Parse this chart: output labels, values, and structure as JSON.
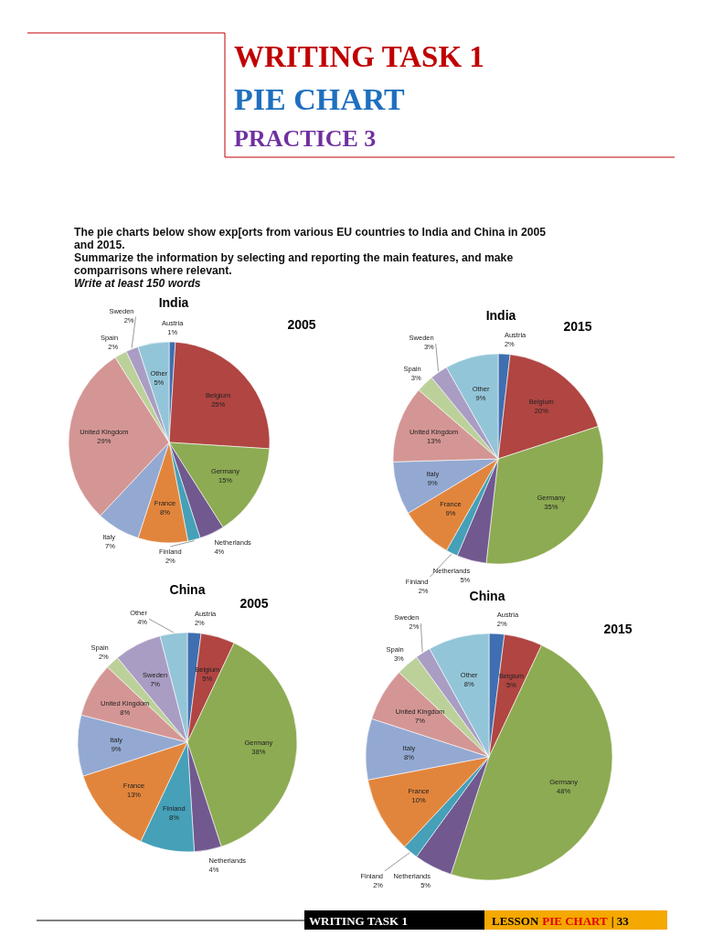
{
  "chart_data": [
    {
      "type": "other",
      "title": "WRITING TASK 1",
      "subtitle": "PIE CHART",
      "annotations": [
        "PRACTICE 3",
        "The pie charts below show exp[orts from various EU countries to India and China in 2005",
        "and 2015.",
        "Summarize the information by selecting and reporting the main features, and make",
        "comparrisons where relevant.",
        "Write at least 150 words"
      ]
    },
    {
      "type": "pie",
      "title": "India",
      "subtitle": "2005",
      "categories": [
        "Austria",
        "Belgium",
        "Germany",
        "Netherlands",
        "Finland",
        "France",
        "Italy",
        "United Kingdom",
        "Spain",
        "Sweden",
        "Other"
      ],
      "values": [
        1,
        25,
        15,
        4,
        2,
        8,
        7,
        29,
        2,
        2,
        5
      ],
      "value_labels": [
        "1%",
        "25%",
        "15%",
        "4%",
        "2%",
        "8%",
        "7%",
        "29%",
        "2%",
        "2%",
        "5%"
      ],
      "colors": [
        "#3f6fb0",
        "#b04542",
        "#8dab52",
        "#71588f",
        "#45a0b8",
        "#e2853c",
        "#93a9d2",
        "#d49694",
        "#bcd19a",
        "#aa9dc4",
        "#93c5d8"
      ]
    },
    {
      "type": "pie",
      "title": "India",
      "subtitle": "2015",
      "categories": [
        "Austria",
        "Belgium",
        "Germany",
        "Netherlands",
        "Finland",
        "France",
        "Italy",
        "United Kingdom",
        "Spain",
        "Sweden",
        "Other"
      ],
      "values": [
        2,
        20,
        35,
        5,
        2,
        9,
        9,
        13,
        3,
        3,
        9
      ],
      "value_labels": [
        "2%",
        "20%",
        "35%",
        "5%",
        "2%",
        "9%",
        "9%",
        "13%",
        "3%",
        "3%",
        "9%"
      ],
      "colors": [
        "#3f6fb0",
        "#b04542",
        "#8dab52",
        "#71588f",
        "#45a0b8",
        "#e2853c",
        "#93a9d2",
        "#d49694",
        "#bcd19a",
        "#aa9dc4",
        "#93c5d8"
      ]
    },
    {
      "type": "pie",
      "title": "China",
      "subtitle": "2005",
      "categories": [
        "Austria",
        "Belgium",
        "Germany",
        "Netherlands",
        "Finland",
        "France",
        "Italy",
        "United Kingdom",
        "Spain",
        "Sweden",
        "Other"
      ],
      "values": [
        2,
        5,
        38,
        4,
        8,
        13,
        9,
        8,
        2,
        7,
        4
      ],
      "value_labels": [
        "2%",
        "5%",
        "38%",
        "4%",
        "8%",
        "13%",
        "9%",
        "8%",
        "2%",
        "7%",
        "4%"
      ],
      "colors": [
        "#3f6fb0",
        "#b04542",
        "#8dab52",
        "#71588f",
        "#45a0b8",
        "#e2853c",
        "#93a9d2",
        "#d49694",
        "#bcd19a",
        "#aa9dc4",
        "#93c5d8"
      ]
    },
    {
      "type": "pie",
      "title": "China",
      "subtitle": "2015",
      "categories": [
        "Austria",
        "Belgium",
        "Germany",
        "Netherlands",
        "Finland",
        "France",
        "Italy",
        "United Kingdom",
        "Spain",
        "Sweden",
        "Other"
      ],
      "values": [
        2,
        5,
        48,
        5,
        2,
        10,
        8,
        7,
        3,
        2,
        8
      ],
      "value_labels": [
        "2%",
        "5%",
        "48%",
        "5%",
        "2%",
        "10%",
        "8%",
        "7%",
        "3%",
        "2%",
        "8%"
      ],
      "colors": [
        "#3f6fb0",
        "#b04542",
        "#8dab52",
        "#71588f",
        "#45a0b8",
        "#e2853c",
        "#93a9d2",
        "#d49694",
        "#bcd19a",
        "#aa9dc4",
        "#93c5d8"
      ]
    },
    {
      "type": "other",
      "annotations": [
        "WRITING TASK 1",
        "LESSON",
        "PIE CHART",
        "| 33"
      ]
    }
  ]
}
